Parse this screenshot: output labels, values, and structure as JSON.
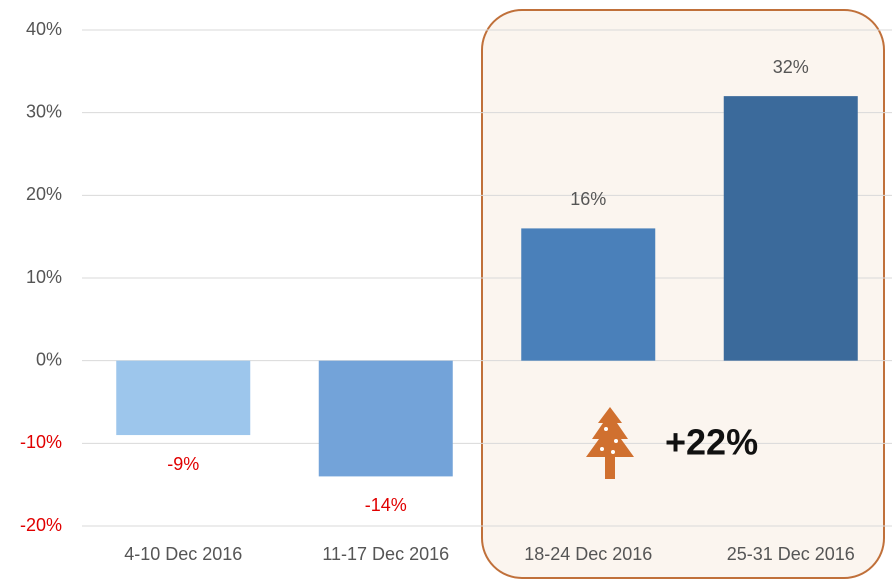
{
  "chart_data": {
    "type": "bar",
    "categories": [
      "4-10 Dec 2016",
      "11-17 Dec 2016",
      "18-24 Dec 2016",
      "25-31 Dec 2016"
    ],
    "values": [
      -9,
      -14,
      16,
      32
    ],
    "value_labels": [
      "-9%",
      "-14%",
      "16%",
      "32%"
    ],
    "colors": [
      "#9dc6ec",
      "#73a3d9",
      "#4a80ba",
      "#3b6a9b"
    ],
    "ylim": [
      -20,
      40
    ],
    "yticks": [
      {
        "value": -20,
        "label": "-20%"
      },
      {
        "value": -10,
        "label": "-10%"
      },
      {
        "value": 0,
        "label": "0%"
      },
      {
        "value": 10,
        "label": "10%"
      },
      {
        "value": 20,
        "label": "20%"
      },
      {
        "value": 30,
        "label": "30%"
      },
      {
        "value": 40,
        "label": "40%"
      }
    ],
    "grid": true,
    "annotation": "+22%"
  }
}
